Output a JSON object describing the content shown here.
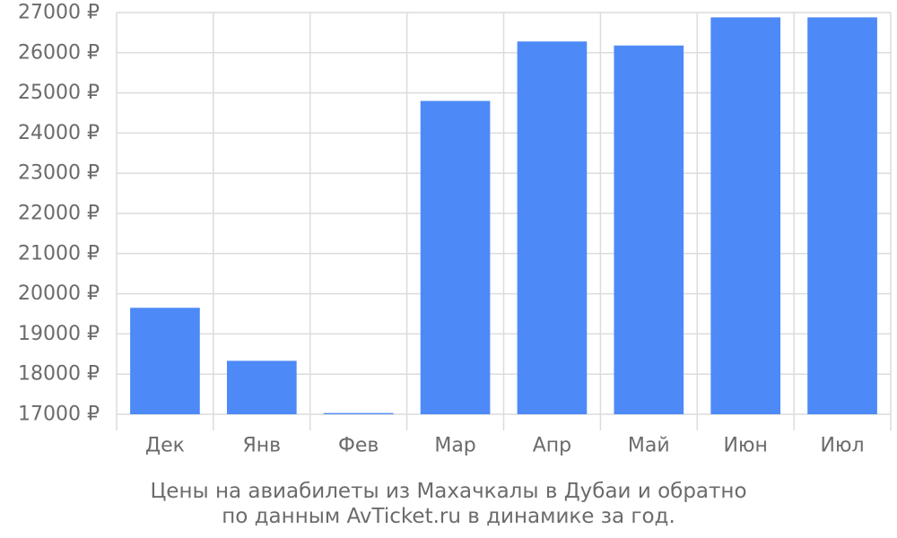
{
  "chart_data": {
    "type": "bar",
    "categories": [
      "Дек",
      "Янв",
      "Фев",
      "Мар",
      "Апр",
      "Май",
      "Июн",
      "Июл"
    ],
    "values": [
      19650,
      18330,
      17030,
      24800,
      26280,
      26180,
      26880,
      26880
    ],
    "ylim": [
      17000,
      27000
    ],
    "yticks": [
      17000,
      18000,
      19000,
      20000,
      21000,
      22000,
      23000,
      24000,
      25000,
      26000,
      27000
    ],
    "y_tick_suffix": " ₽",
    "grid": true,
    "bar_color": "#4d8af7",
    "title": "",
    "xlabel": "",
    "ylabel": ""
  },
  "caption": {
    "line1": "Цены на авиабилеты из Махачкалы в Дубаи и обратно",
    "line2": "по данным AvTicket.ru в динамике за год."
  }
}
